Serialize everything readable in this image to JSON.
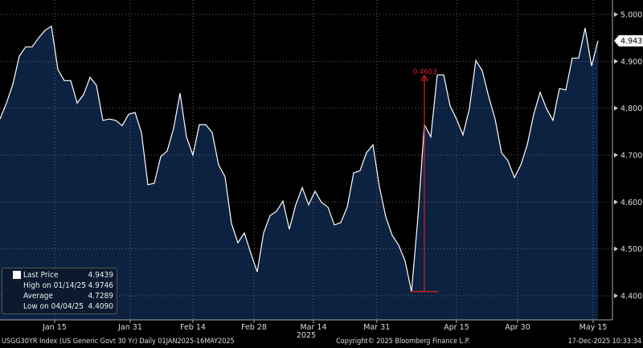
{
  "chart_data": {
    "type": "area",
    "title": "USGG30YR Index (US Generic Govt 30 Yr) Daily 01JAN2025-16MAY2025",
    "ylim": [
      4.4,
      5.0
    ],
    "yticks": [
      "4.4000",
      "4.5000",
      "4.6000",
      "4.7000",
      "4.8000",
      "4.9000",
      "5.0000"
    ],
    "xticks": [
      {
        "label": "Jan 15",
        "i": 8.5
      },
      {
        "label": "Jan 31",
        "i": 20.25
      },
      {
        "label": "Feb 14",
        "i": 30
      },
      {
        "label": "Feb 28",
        "i": 39.5
      },
      {
        "label": "Mar 14",
        "i": 48.75
      },
      {
        "label": "Mar 31",
        "i": 58.6
      },
      {
        "label": "Apr 15",
        "i": 71
      },
      {
        "label": "Apr 30",
        "i": 80.5
      },
      {
        "label": "May 15",
        "i": 92.25
      }
    ],
    "xlabel": "2025",
    "series": [
      {
        "name": "Last Price",
        "values": [
          4.777,
          4.811,
          4.851,
          4.911,
          4.931,
          4.931,
          4.95,
          4.966,
          4.975,
          4.883,
          4.859,
          4.859,
          4.811,
          4.829,
          4.866,
          4.849,
          4.774,
          4.777,
          4.774,
          4.763,
          4.787,
          4.791,
          4.748,
          4.637,
          4.64,
          4.697,
          4.709,
          4.757,
          4.832,
          4.739,
          4.7,
          4.765,
          4.765,
          4.748,
          4.679,
          4.654,
          4.554,
          4.513,
          4.534,
          4.491,
          4.451,
          4.534,
          4.571,
          4.58,
          4.602,
          4.542,
          4.594,
          4.631,
          4.594,
          4.623,
          4.599,
          4.589,
          4.551,
          4.556,
          4.589,
          4.662,
          4.667,
          4.705,
          4.722,
          4.633,
          4.568,
          4.529,
          4.508,
          4.474,
          4.409,
          4.568,
          4.765,
          4.739,
          4.871,
          4.871,
          4.805,
          4.777,
          4.743,
          4.799,
          4.902,
          4.88,
          4.825,
          4.777,
          4.705,
          4.688,
          4.652,
          4.679,
          4.722,
          4.787,
          4.834,
          4.799,
          4.774,
          4.842,
          4.839,
          4.907,
          4.907,
          4.971,
          4.89,
          4.9439
        ]
      }
    ],
    "last_price_label": "4.9439",
    "annotation": {
      "label": "0.4603",
      "from_index": 64,
      "to_index": 66,
      "low": 4.409,
      "high": 4.87
    },
    "colors": {
      "fill": "#0c2240",
      "line": "#ffffff",
      "annotation": "#e0212b"
    }
  },
  "legend": {
    "rows": [
      {
        "label": "Last Price",
        "value": "4.9439"
      },
      {
        "label": "High on 01/14/25",
        "value": "4.9746"
      },
      {
        "label": "Average",
        "value": "4.7289"
      },
      {
        "label": "Low on 04/04/25",
        "value": "4.4090"
      }
    ]
  },
  "footer": {
    "left": "USGG30YR Index (US Generic Govt 30 Yr) Daily 01JAN2025-16MAY2025",
    "center": "Copyright© 2025 Bloomberg Finance L.P.",
    "right": "17-Dec-2025 10:33:34"
  }
}
